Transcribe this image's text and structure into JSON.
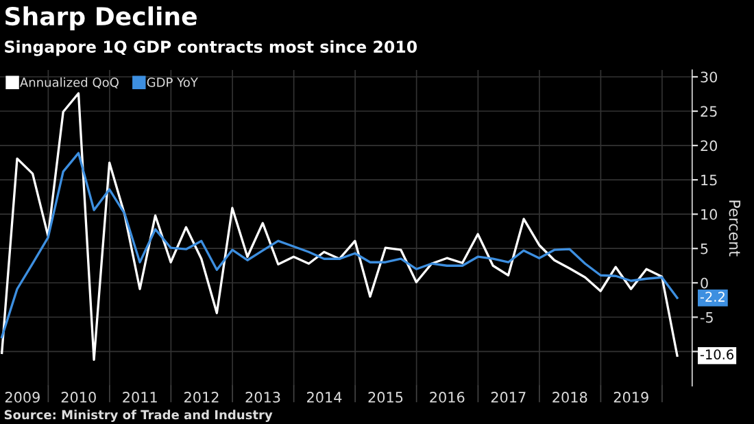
{
  "chart_data": {
    "type": "line",
    "title": "Sharp Decline",
    "subtitle": "Singapore 1Q GDP contracts most since 2010",
    "ylabel": "Percent",
    "annotations": [
      "Source: Ministry of Trade and Industry"
    ],
    "x": [
      "2009-03-31",
      "2009-06-30",
      "2009-09-30",
      "2009-12-31",
      "2010-03-31",
      "2010-06-30",
      "2010-09-30",
      "2010-12-31",
      "2011-03-31",
      "2011-06-30",
      "2011-09-30",
      "2011-12-31",
      "2012-03-31",
      "2012-06-30",
      "2012-09-30",
      "2012-12-31",
      "2013-03-31",
      "2013-06-30",
      "2013-09-30",
      "2013-12-31",
      "2014-03-31",
      "2014-06-30",
      "2014-09-30",
      "2014-12-31",
      "2015-03-31",
      "2015-06-30",
      "2015-09-30",
      "2015-12-31",
      "2016-03-31",
      "2016-06-30",
      "2016-09-30",
      "2016-12-31",
      "2017-03-31",
      "2017-06-30",
      "2017-09-30",
      "2017-12-31",
      "2018-03-31",
      "2018-06-30",
      "2018-09-30",
      "2018-12-31",
      "2019-03-31",
      "2019-06-30",
      "2019-09-30",
      "2019-12-31",
      "2020-03-31"
    ],
    "series": [
      {
        "name": "Annualized QoQ",
        "color": "#ffffff",
        "values": [
          -10.2,
          18.1,
          15.9,
          6.8,
          24.9,
          27.6,
          -11.2,
          17.5,
          10,
          -0.9,
          9.8,
          3.0,
          8.1,
          3.5,
          -4.4,
          10.9,
          3.8,
          8.7,
          2.7,
          3.8,
          2.8,
          4.5,
          3.5,
          6.1,
          -2.0,
          5.1,
          4.8,
          0.1,
          2.8,
          3.6,
          2.9,
          7.1,
          2.5,
          1.1,
          9.3,
          5.5,
          3.3,
          2.1,
          0.8,
          -1.2,
          2.3,
          -0.9,
          2.0,
          0.9,
          -10.6
        ],
        "value_labels": [
          null,
          null,
          null,
          null,
          null,
          null,
          null,
          null,
          null,
          null,
          null,
          null,
          null,
          null,
          null,
          null,
          null,
          null,
          null,
          null,
          null,
          null,
          null,
          null,
          null,
          null,
          null,
          null,
          null,
          null,
          null,
          null,
          null,
          null,
          null,
          null,
          null,
          null,
          null,
          null,
          null,
          null,
          null,
          null,
          "-10.6"
        ]
      },
      {
        "name": "GDP YoY",
        "color": "#3d8fe0",
        "values": [
          -7.9,
          -0.9,
          2.8,
          6.6,
          16.2,
          18.9,
          10.6,
          13.6,
          10.1,
          3.0,
          7.8,
          5.1,
          4.9,
          6.1,
          1.9,
          4.8,
          3.3,
          4.7,
          6.1,
          5.3,
          4.5,
          3.5,
          3.5,
          4.3,
          3.0,
          3.0,
          3.5,
          2.0,
          2.8,
          2.5,
          2.5,
          3.8,
          3.5,
          3.0,
          4.7,
          3.6,
          4.8,
          4.9,
          2.8,
          1.1,
          1.0,
          0.3,
          0.6,
          0.8,
          -2.2
        ],
        "value_labels": [
          null,
          null,
          null,
          null,
          null,
          null,
          null,
          null,
          null,
          null,
          null,
          null,
          null,
          null,
          null,
          null,
          null,
          null,
          null,
          null,
          null,
          null,
          null,
          null,
          null,
          null,
          null,
          null,
          null,
          null,
          null,
          null,
          null,
          null,
          null,
          null,
          null,
          null,
          null,
          null,
          null,
          null,
          null,
          null,
          "-2.2"
        ]
      }
    ],
    "xlim": [
      "2009-03-20",
      "2020-06-28"
    ],
    "xticks": [
      {
        "value": "2009-08-01",
        "label": "2009"
      },
      {
        "value": "2010-01-01",
        "label": null
      },
      {
        "value": "2010-07-01",
        "label": "2010"
      },
      {
        "value": "2011-01-01",
        "label": null
      },
      {
        "value": "2011-07-01",
        "label": "2011"
      },
      {
        "value": "2012-01-01",
        "label": null
      },
      {
        "value": "2012-07-01",
        "label": "2012"
      },
      {
        "value": "2013-01-01",
        "label": null
      },
      {
        "value": "2013-07-01",
        "label": "2013"
      },
      {
        "value": "2014-01-01",
        "label": null
      },
      {
        "value": "2014-07-01",
        "label": "2014"
      },
      {
        "value": "2015-01-01",
        "label": null
      },
      {
        "value": "2015-07-01",
        "label": "2015"
      },
      {
        "value": "2016-01-01",
        "label": null
      },
      {
        "value": "2016-07-01",
        "label": "2016"
      },
      {
        "value": "2017-01-01",
        "label": null
      },
      {
        "value": "2017-07-01",
        "label": "2017"
      },
      {
        "value": "2018-01-01",
        "label": null
      },
      {
        "value": "2018-07-01",
        "label": "2018"
      },
      {
        "value": "2019-01-01",
        "label": null
      },
      {
        "value": "2019-07-01",
        "label": "2019"
      },
      {
        "value": "2020-01-01",
        "label": null
      }
    ],
    "ylim": [
      -15,
      31
    ],
    "yticks": [
      {
        "value": -10,
        "label": null
      },
      -5,
      0,
      5,
      10,
      15,
      20,
      25,
      30
    ],
    "grid": true,
    "legend": "top left",
    "marker": "none",
    "line_style": "solid"
  }
}
